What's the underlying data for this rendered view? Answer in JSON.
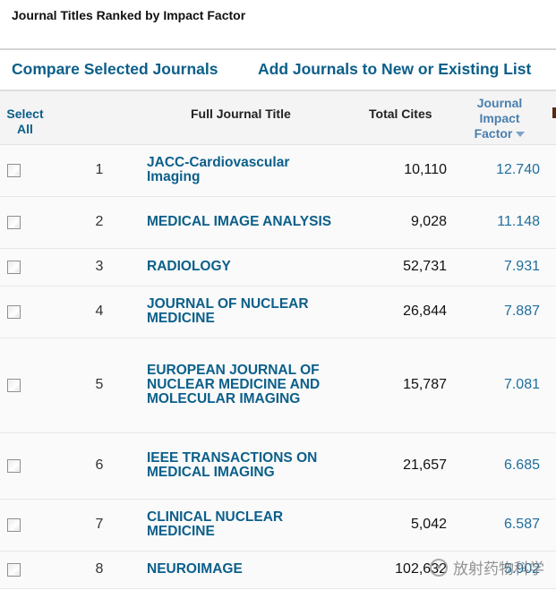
{
  "page": {
    "heading": "Journal Titles Ranked by Impact Factor"
  },
  "actions": {
    "compare": "Compare Selected Journals",
    "add_to_list": "Add Journals to New or Existing List"
  },
  "table": {
    "headers": {
      "select_line1": "Select",
      "select_line2": "All",
      "full_title": "Full Journal Title",
      "total_cites": "Total Cites",
      "jif_line1": "Journal",
      "jif_line2": "Impact",
      "jif_line3": "Factor",
      "sort_icon": "sort-desc-triangle"
    },
    "rows": [
      {
        "rank": "1",
        "title_lines": [
          "JACC-Cardiovascular",
          "Imaging"
        ],
        "total_cites": "10,110",
        "jif": "12.740"
      },
      {
        "rank": "2",
        "title_lines": [
          "MEDICAL IMAGE ANALYSIS"
        ],
        "total_cites": "9,028",
        "jif": "11.148"
      },
      {
        "rank": "3",
        "title_lines": [
          "RADIOLOGY"
        ],
        "total_cites": "52,731",
        "jif": "7.931"
      },
      {
        "rank": "4",
        "title_lines": [
          "JOURNAL OF NUCLEAR",
          "MEDICINE"
        ],
        "total_cites": "26,844",
        "jif": "7.887"
      },
      {
        "rank": "5",
        "title_lines": [
          "EUROPEAN JOURNAL OF",
          "NUCLEAR MEDICINE AND",
          "MOLECULAR IMAGING"
        ],
        "total_cites": "15,787",
        "jif": "7.081"
      },
      {
        "rank": "6",
        "title_lines": [
          "IEEE TRANSACTIONS ON",
          "MEDICAL IMAGING"
        ],
        "total_cites": "21,657",
        "jif": "6.685"
      },
      {
        "rank": "7",
        "title_lines": [
          "CLINICAL NUCLEAR",
          "MEDICINE"
        ],
        "total_cites": "5,042",
        "jif": "6.587"
      },
      {
        "rank": "8",
        "title_lines": [
          "NEUROIMAGE"
        ],
        "total_cites": "102,632",
        "jif": "5.902"
      }
    ]
  },
  "watermark": {
    "text": "放射药物科学"
  },
  "colors": {
    "link": "#0b5f8a",
    "jif_value": "#1f6e9c",
    "jif_header": "#4a7fae",
    "header_bg": "#f4f4f4",
    "row_bg": "#fafafa"
  }
}
